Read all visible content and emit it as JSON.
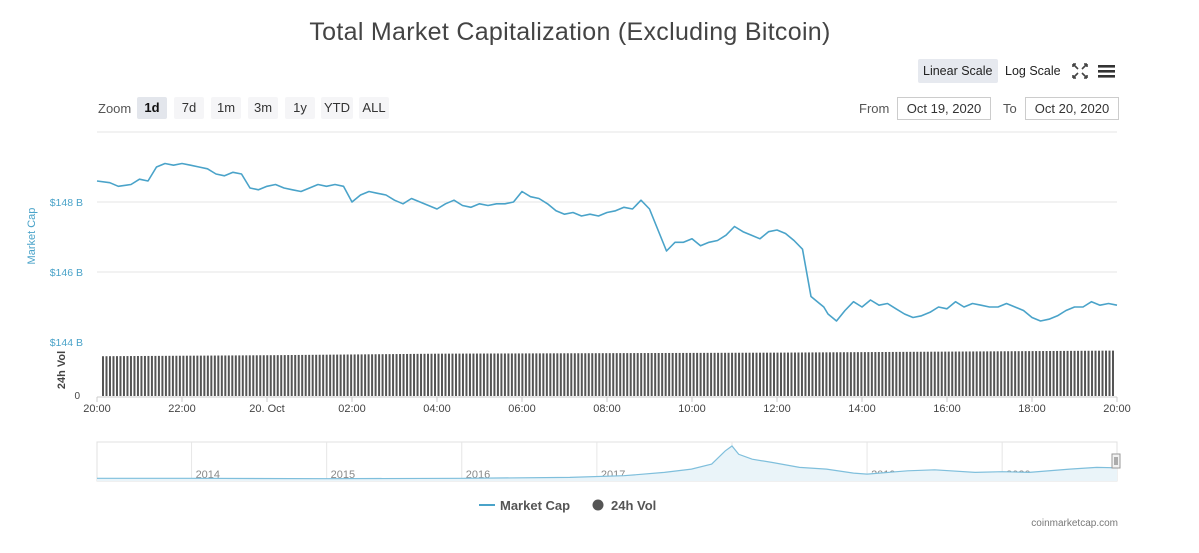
{
  "title": "Total Market Capitalization (Excluding Bitcoin)",
  "toolbar": {
    "linear_scale": "Linear Scale",
    "log_scale": "Log Scale",
    "fullscreen_icon": "fullscreen-icon",
    "menu_icon": "hamburger-menu-icon"
  },
  "zoom": {
    "label": "Zoom",
    "buttons": [
      "1d",
      "7d",
      "1m",
      "3m",
      "1y",
      "YTD",
      "ALL"
    ],
    "active": "1d"
  },
  "range": {
    "from_label": "From",
    "from_value": "Oct 19, 2020",
    "to_label": "To",
    "to_value": "Oct 20, 2020"
  },
  "legend": {
    "market_cap": "Market Cap",
    "volume": "24h Vol"
  },
  "credit": "coinmarketcap.com",
  "colors": {
    "line": "#4aa3c9",
    "volume": "#555555",
    "grid": "#e6e6e6",
    "axis_label": "#4aa3c9"
  },
  "chart_data": {
    "type": "line",
    "title": "Total Market Capitalization (Excluding Bitcoin)",
    "ylabel": "Market Cap",
    "y2label": "24h Vol",
    "ylim": [
      144,
      150
    ],
    "y_ticks": [
      "$148 B",
      "$146 B",
      "$144 B"
    ],
    "y_tick_values": [
      148,
      146,
      144
    ],
    "vol_tick": "0",
    "x_ticks": [
      "20:00",
      "22:00",
      "20. Oct",
      "02:00",
      "04:00",
      "06:00",
      "08:00",
      "10:00",
      "12:00",
      "14:00",
      "16:00",
      "18:00",
      "20:00"
    ],
    "x_tick_hours": [
      0,
      2,
      4,
      6,
      8,
      10,
      12,
      14,
      16,
      18,
      20,
      22,
      24
    ],
    "series": [
      {
        "name": "Market Cap",
        "x_hours": [
          0,
          0.3,
          0.5,
          0.8,
          1.0,
          1.2,
          1.4,
          1.6,
          1.8,
          2.0,
          2.2,
          2.4,
          2.6,
          2.8,
          3.0,
          3.2,
          3.4,
          3.6,
          3.8,
          4.0,
          4.2,
          4.4,
          4.6,
          4.8,
          5.0,
          5.2,
          5.4,
          5.6,
          5.8,
          6.0,
          6.2,
          6.4,
          6.6,
          6.8,
          7.0,
          7.2,
          7.4,
          7.6,
          7.8,
          8.0,
          8.2,
          8.4,
          8.6,
          8.8,
          9.0,
          9.2,
          9.4,
          9.6,
          9.8,
          10.0,
          10.2,
          10.4,
          10.6,
          10.8,
          11.0,
          11.2,
          11.4,
          11.6,
          11.8,
          12.0,
          12.2,
          12.4,
          12.6,
          12.8,
          13.0,
          13.2,
          13.4,
          13.6,
          13.8,
          14.0,
          14.2,
          14.4,
          14.6,
          14.8,
          15.0,
          15.2,
          15.4,
          15.6,
          15.8,
          16.0,
          16.2,
          16.4,
          16.6,
          16.8,
          17.0,
          17.1,
          17.2,
          17.4,
          17.6,
          17.8,
          18.0,
          18.2,
          18.4,
          18.6,
          18.8,
          19.0,
          19.2,
          19.4,
          19.6,
          19.8,
          20.0,
          20.2,
          20.4,
          20.6,
          20.8,
          21.0,
          21.2,
          21.4,
          21.6,
          21.8,
          22.0,
          22.2,
          22.4,
          22.6,
          22.8,
          23.0,
          23.2,
          23.4,
          23.6,
          23.8,
          24.0
        ],
        "values": [
          148.6,
          148.55,
          148.45,
          148.5,
          148.65,
          148.6,
          149.0,
          149.1,
          149.05,
          149.1,
          149.05,
          149.0,
          148.95,
          148.8,
          148.75,
          148.85,
          148.8,
          148.4,
          148.35,
          148.45,
          148.5,
          148.4,
          148.35,
          148.3,
          148.4,
          148.5,
          148.45,
          148.5,
          148.45,
          148.0,
          148.2,
          148.3,
          148.25,
          148.2,
          148.05,
          147.95,
          148.1,
          148.0,
          147.9,
          147.8,
          147.95,
          148.05,
          147.9,
          147.85,
          147.95,
          147.9,
          147.95,
          147.95,
          148.0,
          148.3,
          148.15,
          148.1,
          147.95,
          147.75,
          147.65,
          147.7,
          147.6,
          147.65,
          147.6,
          147.7,
          147.75,
          147.85,
          147.8,
          148.05,
          147.8,
          147.2,
          146.6,
          146.85,
          146.85,
          146.95,
          146.75,
          146.85,
          146.9,
          147.05,
          147.3,
          147.15,
          147.05,
          146.95,
          147.15,
          147.2,
          147.1,
          146.9,
          146.65,
          145.3,
          145.1,
          145.0,
          144.8,
          144.6,
          144.9,
          145.15,
          145.0,
          145.2,
          145.05,
          145.1,
          144.95,
          144.8,
          144.7,
          144.75,
          144.85,
          145.0,
          144.95,
          145.15,
          145.0,
          145.1,
          145.05,
          145.0,
          145.0,
          145.1,
          145.0,
          144.9,
          144.7,
          144.6,
          144.65,
          144.75,
          144.9,
          145.0,
          145.0,
          145.15,
          145.05,
          145.1,
          145.05
        ]
      },
      {
        "name": "24h Vol",
        "x_hours": [
          0,
          4,
          8,
          12,
          16,
          18,
          20,
          22,
          24
        ],
        "values": [
          0.78,
          0.8,
          0.83,
          0.84,
          0.85,
          0.86,
          0.87,
          0.88,
          0.89
        ]
      }
    ],
    "navigator": {
      "x_labels": [
        "2014",
        "2015",
        "2016",
        "2017",
        "2018",
        "2019",
        "2020"
      ],
      "x_years": [
        2014,
        2015,
        2016,
        2017,
        2018,
        2019,
        2020
      ],
      "x_range": [
        2013.3,
        2020.85
      ],
      "series_years": [
        2013.3,
        2014.0,
        2015.0,
        2016.0,
        2016.8,
        2017.2,
        2017.5,
        2017.7,
        2017.85,
        2017.95,
        2018.0,
        2018.05,
        2018.15,
        2018.3,
        2018.5,
        2018.7,
        2018.9,
        2019.0,
        2019.3,
        2019.5,
        2019.8,
        2020.0,
        2020.2,
        2020.5,
        2020.7,
        2020.85
      ],
      "series_values": [
        0.02,
        0.02,
        0.01,
        0.02,
        0.05,
        0.1,
        0.2,
        0.3,
        0.45,
        0.85,
        1.0,
        0.75,
        0.6,
        0.5,
        0.35,
        0.3,
        0.18,
        0.15,
        0.25,
        0.28,
        0.2,
        0.22,
        0.2,
        0.3,
        0.35,
        0.34
      ],
      "legend_position": "bottom-center"
    }
  }
}
